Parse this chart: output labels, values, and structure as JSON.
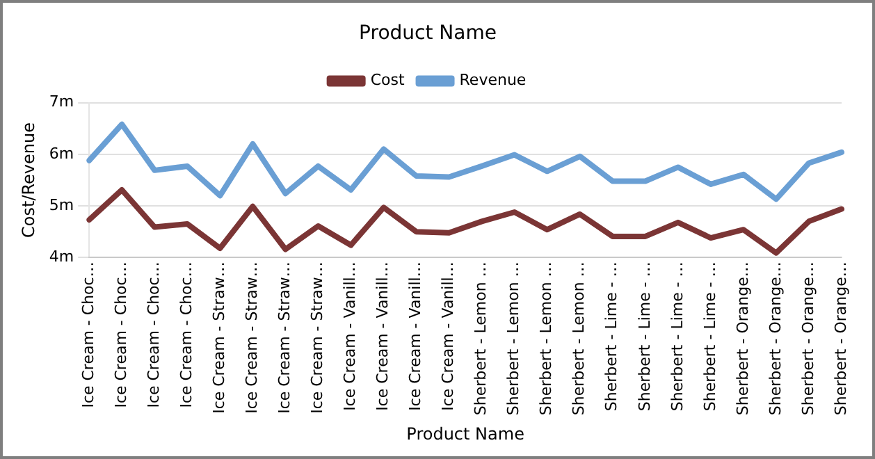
{
  "chart_data": {
    "type": "line",
    "title": "Product Name",
    "xlabel": "Product Name",
    "ylabel": "Cost/Revenue",
    "categories": [
      "Ice Cream - Choc…",
      "Ice Cream - Choc…",
      "Ice Cream - Choc…",
      "Ice Cream - Choc…",
      "Ice Cream - Straw…",
      "Ice Cream - Straw…",
      "Ice Cream - Straw…",
      "Ice Cream - Straw…",
      "Ice Cream - Vanill…",
      "Ice Cream - Vanill…",
      "Ice Cream - Vanill…",
      "Ice Cream - Vanill…",
      "Sherbert - Lemon …",
      "Sherbert - Lemon …",
      "Sherbert - Lemon …",
      "Sherbert - Lemon …",
      "Sherbert - Lime - …",
      "Sherbert - Lime - …",
      "Sherbert - Lime - …",
      "Sherbert - Lime - …",
      "Sherbert - Orange…",
      "Sherbert - Orange…",
      "Sherbert - Orange…",
      "Sherbert - Orange…"
    ],
    "series": [
      {
        "name": "Cost",
        "color": "#7b3535",
        "values": [
          4.73,
          5.31,
          4.59,
          4.65,
          4.18,
          4.99,
          4.16,
          4.61,
          4.24,
          4.97,
          4.5,
          4.48,
          4.7,
          4.88,
          4.54,
          4.84,
          4.41,
          4.41,
          4.68,
          4.38,
          4.54,
          4.09,
          4.7,
          4.94
        ]
      },
      {
        "name": "Revenue",
        "color": "#6a9fd4",
        "values": [
          5.88,
          6.58,
          5.69,
          5.77,
          5.2,
          6.2,
          5.24,
          5.77,
          5.31,
          6.1,
          5.58,
          5.56,
          5.77,
          5.99,
          5.67,
          5.96,
          5.48,
          5.48,
          5.75,
          5.42,
          5.61,
          5.13,
          5.83,
          6.04
        ]
      }
    ],
    "ylim": [
      4,
      7
    ],
    "yticks": [
      {
        "value": 4,
        "label": "4m"
      },
      {
        "value": 5,
        "label": "5m"
      },
      {
        "value": 6,
        "label": "6m"
      },
      {
        "value": 7,
        "label": "7m"
      }
    ],
    "grid": "y",
    "legend": "top",
    "marker": "none",
    "line_style": "solid"
  }
}
